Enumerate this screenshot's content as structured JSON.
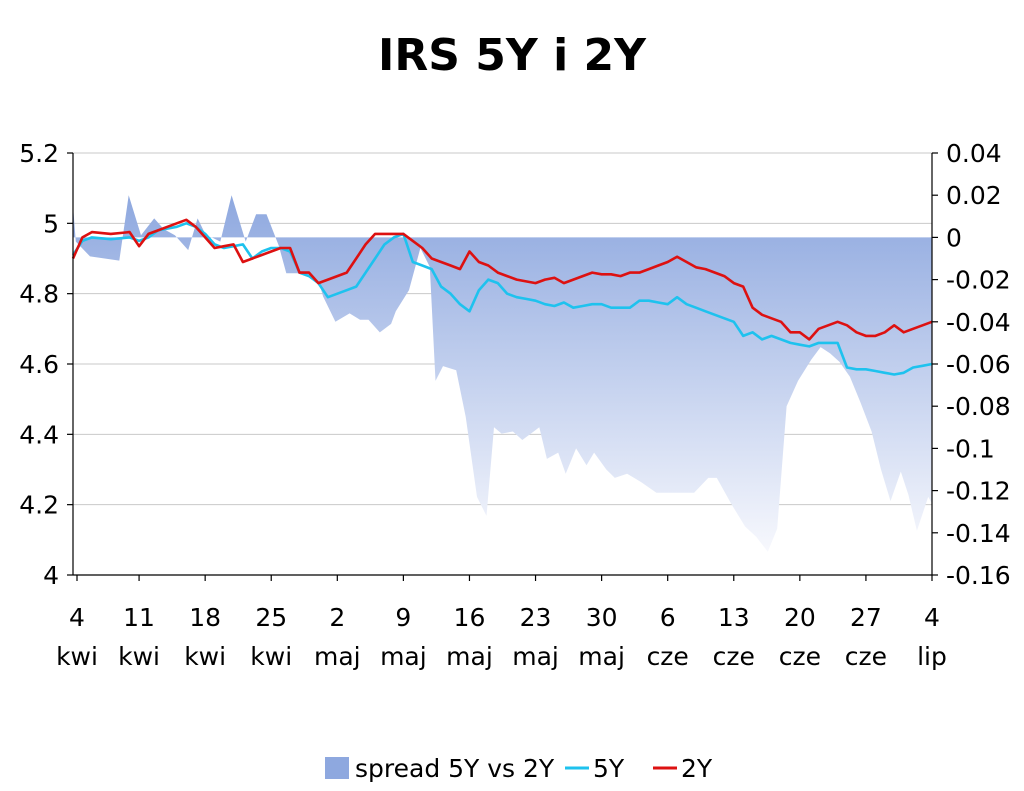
{
  "chart_data": {
    "type": "line",
    "title": "IRS 5Y i 2Y",
    "x_ticks": [
      {
        "day": "4",
        "month": "kwi"
      },
      {
        "day": "11",
        "month": "kwi"
      },
      {
        "day": "18",
        "month": "kwi"
      },
      {
        "day": "25",
        "month": "kwi"
      },
      {
        "day": "2",
        "month": "maj"
      },
      {
        "day": "9",
        "month": "maj"
      },
      {
        "day": "16",
        "month": "maj"
      },
      {
        "day": "23",
        "month": "maj"
      },
      {
        "day": "30",
        "month": "maj"
      },
      {
        "day": "6",
        "month": "cze"
      },
      {
        "day": "13",
        "month": "cze"
      },
      {
        "day": "20",
        "month": "cze"
      },
      {
        "day": "27",
        "month": "cze"
      },
      {
        "day": "4",
        "month": "lip"
      }
    ],
    "y_left": {
      "min": 4,
      "max": 5.2,
      "ticks": [
        "4",
        "4.2",
        "4.4",
        "4.6",
        "4.8",
        "5",
        "5.2"
      ]
    },
    "y_right": {
      "min": -0.16,
      "max": 0.04,
      "ticks": [
        "-0.16",
        "-0.14",
        "-0.12",
        "-0.1",
        "-0.08",
        "-0.06",
        "-0.04",
        "-0.02",
        "0",
        "0.02",
        "0.04"
      ]
    },
    "grid": true,
    "legend_position": "bottom",
    "series": [
      {
        "name": "spread 5Y vs 2Y",
        "kind": "area",
        "axis": "right",
        "color": "#8ea8df",
        "x": [
          0,
          0.3,
          1.8,
          4.9,
          5.9,
          7.2,
          8.6,
          9.6,
          10.8,
          12.2,
          13.2,
          14.3,
          14.7,
          15.6,
          16.8,
          18.3,
          19.4,
          20.5,
          21.8,
          22.6,
          23.8,
          25.1,
          26.1,
          26.5,
          27.8,
          29.3,
          30.4,
          31.3,
          32.5,
          33.7,
          34.2,
          35.6,
          36.8,
          37.8,
          38.4,
          39.2,
          40.6,
          41.6,
          42.8,
          43.8,
          44.6,
          45.4,
          46.6,
          47.6,
          48.8,
          49.4,
          50.2,
          51.4,
          52.2,
          53.3,
          54.4,
          55.2,
          56.5,
          57.4,
          58.7,
          60.2,
          61.8,
          63.6,
          65.8,
          67.3,
          68.2,
          69.7,
          71.2,
          72.4,
          73.6,
          74.6,
          75.6,
          76.8,
          78.2,
          79.2,
          80.2,
          81.2,
          82.3,
          83.4,
          84.6,
          85.6,
          86.6,
          87.7,
          88.5,
          89.4,
          90.6,
          91.0
        ],
        "y": [
          0.015,
          -0.002,
          -0.009,
          -0.011,
          0.02,
          0.001,
          0.009,
          0.004,
          0.001,
          -0.006,
          0.009,
          -0.001,
          0.0,
          -0.002,
          0.02,
          -0.002,
          0.011,
          0.011,
          -0.004,
          -0.017,
          -0.017,
          -0.019,
          -0.022,
          -0.028,
          -0.04,
          -0.036,
          -0.039,
          -0.039,
          -0.045,
          -0.041,
          -0.035,
          -0.025,
          -0.005,
          -0.014,
          -0.068,
          -0.061,
          -0.063,
          -0.085,
          -0.123,
          -0.132,
          -0.09,
          -0.093,
          -0.092,
          -0.096,
          -0.092,
          -0.09,
          -0.105,
          -0.102,
          -0.112,
          -0.1,
          -0.108,
          -0.102,
          -0.11,
          -0.114,
          -0.112,
          -0.116,
          -0.121,
          -0.121,
          -0.121,
          -0.114,
          -0.114,
          -0.126,
          -0.137,
          -0.142,
          -0.149,
          -0.138,
          -0.08,
          -0.068,
          -0.058,
          -0.052,
          -0.055,
          -0.059,
          -0.066,
          -0.078,
          -0.092,
          -0.11,
          -0.125,
          -0.111,
          -0.122,
          -0.139,
          -0.123,
          -0.126
        ]
      },
      {
        "name": "5Y",
        "kind": "line",
        "axis": "left",
        "color": "#1ec2ee",
        "x": [
          0,
          1,
          2,
          4,
          6,
          7,
          8,
          9,
          10,
          11,
          12,
          13,
          14,
          15,
          16,
          17,
          18,
          19,
          20,
          21,
          22,
          23,
          24,
          25,
          26,
          27,
          28,
          29,
          30,
          31,
          32,
          33,
          34,
          35,
          36,
          37,
          38,
          39,
          40,
          41,
          42,
          43,
          44,
          45,
          46,
          47,
          48,
          49,
          50,
          51,
          52,
          53,
          54,
          55,
          56,
          57,
          58,
          59,
          60,
          61,
          62,
          63,
          64,
          65,
          66,
          67,
          68,
          69,
          70,
          71,
          72,
          73,
          74,
          75,
          76,
          77,
          78,
          79,
          80,
          81,
          82,
          83,
          84,
          85,
          86,
          87,
          88,
          89,
          90,
          91
        ],
        "y": [
          4.91,
          4.95,
          4.96,
          4.955,
          4.96,
          4.95,
          4.96,
          4.98,
          4.985,
          4.99,
          5.0,
          4.99,
          4.97,
          4.94,
          4.93,
          4.935,
          4.94,
          4.9,
          4.92,
          4.93,
          4.93,
          4.92,
          4.86,
          4.85,
          4.83,
          4.79,
          4.8,
          4.81,
          4.82,
          4.86,
          4.9,
          4.94,
          4.96,
          4.97,
          4.89,
          4.88,
          4.87,
          4.82,
          4.8,
          4.77,
          4.75,
          4.81,
          4.84,
          4.83,
          4.8,
          4.79,
          4.785,
          4.78,
          4.77,
          4.765,
          4.775,
          4.76,
          4.765,
          4.77,
          4.77,
          4.76,
          4.76,
          4.76,
          4.78,
          4.78,
          4.775,
          4.77,
          4.79,
          4.77,
          4.76,
          4.75,
          4.74,
          4.73,
          4.72,
          4.68,
          4.69,
          4.67,
          4.68,
          4.67,
          4.66,
          4.655,
          4.65,
          4.66,
          4.66,
          4.66,
          4.59,
          4.585,
          4.585,
          4.58,
          4.575,
          4.57,
          4.575,
          4.59,
          4.595,
          4.6
        ]
      },
      {
        "name": "2Y",
        "kind": "line",
        "axis": "left",
        "color": "#dd1111",
        "x": [
          0,
          1,
          2,
          4,
          6,
          7,
          8,
          9,
          10,
          11,
          12,
          13,
          14,
          15,
          16,
          17,
          18,
          19,
          20,
          21,
          22,
          23,
          24,
          25,
          26,
          27,
          28,
          29,
          30,
          31,
          32,
          33,
          34,
          35,
          36,
          37,
          38,
          39,
          40,
          41,
          42,
          43,
          44,
          45,
          46,
          47,
          48,
          49,
          50,
          51,
          52,
          53,
          54,
          55,
          56,
          57,
          58,
          59,
          60,
          61,
          62,
          63,
          64,
          65,
          66,
          67,
          68,
          69,
          70,
          71,
          72,
          73,
          74,
          75,
          76,
          77,
          78,
          79,
          80,
          81,
          82,
          83,
          84,
          85,
          86,
          87,
          88,
          89,
          90,
          91
        ],
        "y": [
          4.9,
          4.96,
          4.975,
          4.97,
          4.975,
          4.935,
          4.97,
          4.98,
          4.99,
          5.0,
          5.01,
          4.99,
          4.96,
          4.93,
          4.935,
          4.94,
          4.89,
          4.9,
          4.91,
          4.92,
          4.93,
          4.93,
          4.86,
          4.86,
          4.83,
          4.84,
          4.85,
          4.86,
          4.9,
          4.94,
          4.97,
          4.97,
          4.97,
          4.97,
          4.95,
          4.93,
          4.9,
          4.89,
          4.88,
          4.87,
          4.92,
          4.89,
          4.88,
          4.86,
          4.85,
          4.84,
          4.835,
          4.83,
          4.84,
          4.845,
          4.83,
          4.84,
          4.85,
          4.86,
          4.855,
          4.855,
          4.85,
          4.86,
          4.86,
          4.87,
          4.88,
          4.89,
          4.905,
          4.89,
          4.875,
          4.87,
          4.86,
          4.85,
          4.83,
          4.82,
          4.76,
          4.74,
          4.73,
          4.72,
          4.69,
          4.69,
          4.67,
          4.7,
          4.71,
          4.72,
          4.71,
          4.69,
          4.68,
          4.68,
          4.69,
          4.71,
          4.69,
          4.7,
          4.71,
          4.72
        ]
      }
    ]
  }
}
